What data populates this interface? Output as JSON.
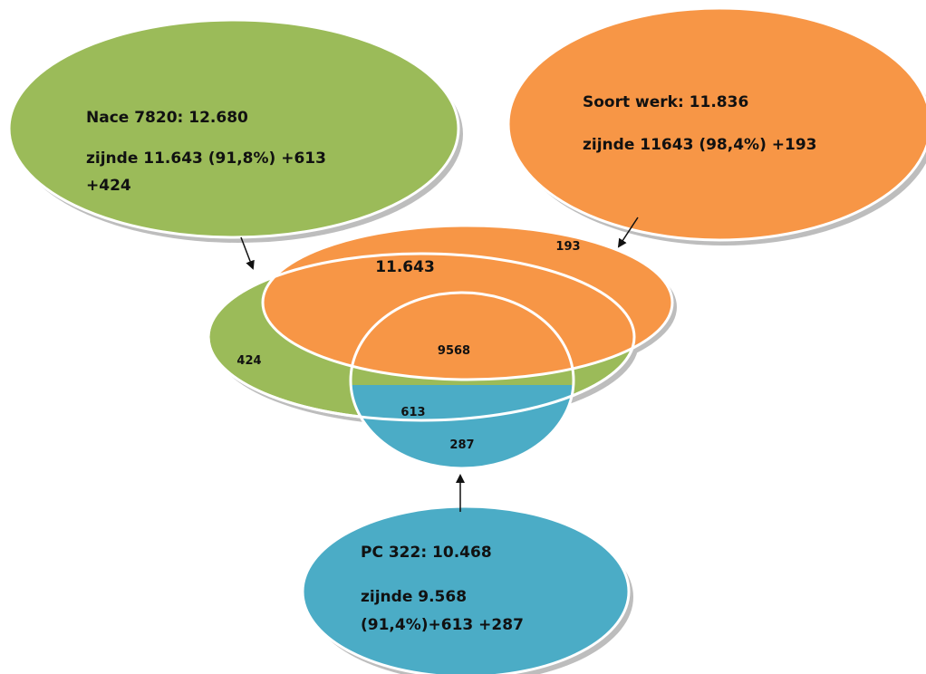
{
  "colors": {
    "green": "#9bbb59",
    "orange": "#f79646",
    "blue": "#4bacc6",
    "ellipse_border": "#ffffff",
    "shadow": "#bdbdbd",
    "arrow": "#111111"
  },
  "callouts": {
    "nace": {
      "title": "Nace 7820: 12.680",
      "detail_line1": "zijnde 11.643 (91,8%) +613",
      "detail_line2": "+424"
    },
    "soort": {
      "title": "Soort werk: 11.836",
      "detail_line1": "zijnde 11643 (98,4%) +193"
    },
    "pc": {
      "title": "PC 322: 10.468",
      "detail_line1": "zijnde 9.568",
      "detail_line2": "(91,4%)+613 +287"
    }
  },
  "regions": {
    "soort_only": "193",
    "nace_soort": "11.643",
    "nace_only": "424",
    "all_three": "9568",
    "nace_pc": "613",
    "pc_only": "287"
  }
}
